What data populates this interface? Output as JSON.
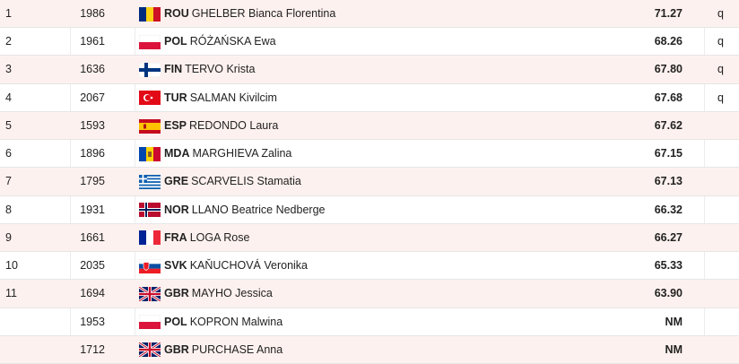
{
  "table": {
    "rows": [
      {
        "rank": "1",
        "bib": "1986",
        "country": "ROU",
        "name": "GHELBER Bianca Florentina",
        "result": "71.27",
        "qualification": "q"
      },
      {
        "rank": "2",
        "bib": "1961",
        "country": "POL",
        "name": "RÓŻAŃSKA Ewa",
        "result": "68.26",
        "qualification": "q"
      },
      {
        "rank": "3",
        "bib": "1636",
        "country": "FIN",
        "name": "TERVO Krista",
        "result": "67.80",
        "qualification": "q"
      },
      {
        "rank": "4",
        "bib": "2067",
        "country": "TUR",
        "name": "SALMAN Kivilcim",
        "result": "67.68",
        "qualification": "q"
      },
      {
        "rank": "5",
        "bib": "1593",
        "country": "ESP",
        "name": "REDONDO Laura",
        "result": "67.62"
      },
      {
        "rank": "6",
        "bib": "1896",
        "country": "MDA",
        "name": "MARGHIEVA Zalina",
        "result": "67.15"
      },
      {
        "rank": "7",
        "bib": "1795",
        "country": "GRE",
        "name": "SCARVELIS Stamatia",
        "result": "67.13"
      },
      {
        "rank": "8",
        "bib": "1931",
        "country": "NOR",
        "name": "LLANO Beatrice Nedberge",
        "result": "66.32"
      },
      {
        "rank": "9",
        "bib": "1661",
        "country": "FRA",
        "name": "LOGA Rose",
        "result": "66.27"
      },
      {
        "rank": "10",
        "bib": "2035",
        "country": "SVK",
        "name": "KAŇUCHOVÁ Veronika",
        "result": "65.33"
      },
      {
        "rank": "11",
        "bib": "1694",
        "country": "GBR",
        "name": "MAYHO Jessica",
        "result": "63.90"
      },
      {
        "bib": "1953",
        "country": "POL",
        "name": "KOPRON Malwina",
        "result": "NM"
      },
      {
        "bib": "1712",
        "country": "GBR",
        "name": "PURCHASE Anna",
        "result": "NM"
      }
    ]
  }
}
